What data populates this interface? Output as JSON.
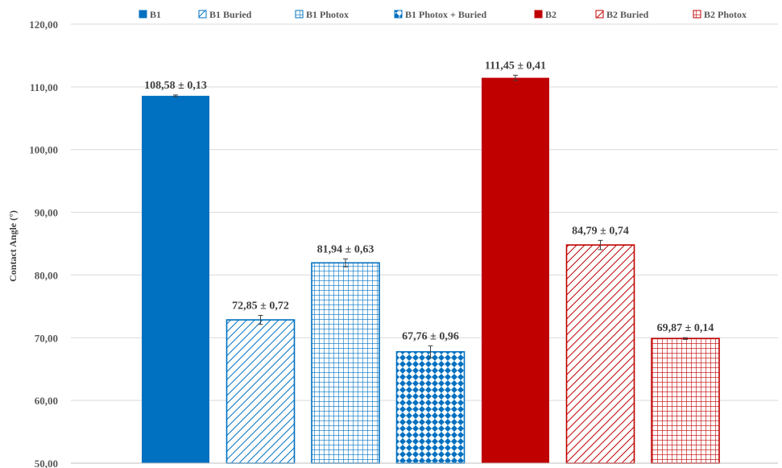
{
  "chart_data": {
    "type": "bar",
    "ylabel": "Contact Angle (°)",
    "ylim": [
      50,
      120
    ],
    "yticks": [
      50,
      60,
      70,
      80,
      90,
      100,
      110,
      120
    ],
    "ytick_labels": [
      "50,00",
      "60,00",
      "70,00",
      "80,00",
      "90,00",
      "100,00",
      "110,00",
      "120,00"
    ],
    "grid": true,
    "legend_position": "top",
    "series": [
      {
        "name": "B1",
        "value": 108.58,
        "error": 0.13,
        "label": "108,58 ± 0,13",
        "color": "#0070C0",
        "fill": "solid"
      },
      {
        "name": "B1 Buried",
        "value": 72.85,
        "error": 0.72,
        "label": "72,85 ± 0,72",
        "color": "#0070C0",
        "fill": "diagonal"
      },
      {
        "name": "B1 Photox",
        "value": 81.94,
        "error": 0.63,
        "label": "81,94 ± 0,63",
        "color": "#0070C0",
        "fill": "grid"
      },
      {
        "name": "B1 Photox + Buried",
        "value": 67.76,
        "error": 0.96,
        "label": "67,76 ± 0,96",
        "color": "#0070C0",
        "fill": "diamond"
      },
      {
        "name": "B2",
        "value": 111.45,
        "error": 0.41,
        "label": "111,45 ± 0,41",
        "color": "#C00000",
        "fill": "solid"
      },
      {
        "name": "B2 Buried",
        "value": 84.79,
        "error": 0.74,
        "label": "84,79 ± 0,74",
        "color": "#C00000",
        "fill": "diagonal"
      },
      {
        "name": "B2 Photox",
        "value": 69.87,
        "error": 0.14,
        "label": "69,87 ± 0,14",
        "color": "#C00000",
        "fill": "grid"
      }
    ]
  }
}
